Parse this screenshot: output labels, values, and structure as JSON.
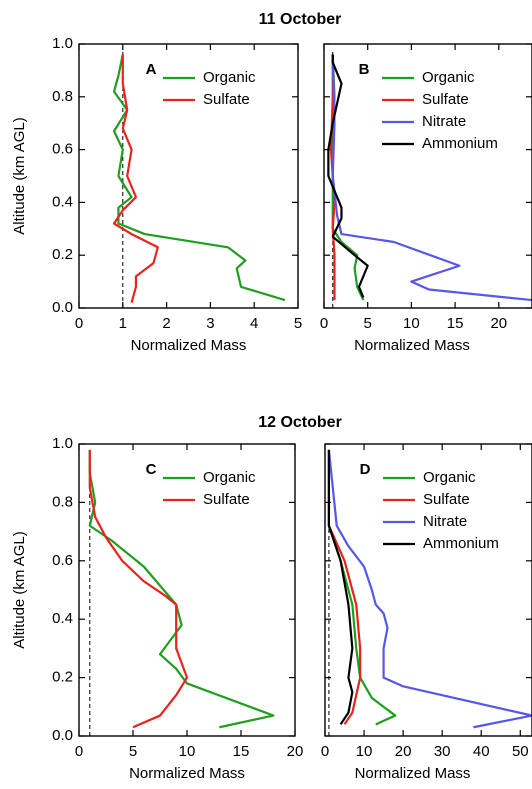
{
  "row_titles": [
    "11 October",
    "12 October"
  ],
  "chart_data": [
    {
      "type": "line",
      "panel_label": "A",
      "xlabel": "Normalized Mass",
      "ylabel": "Altitude (km AGL)",
      "xlim": [
        0,
        5
      ],
      "xticks": [
        0,
        1,
        2,
        3,
        4,
        5
      ],
      "ylim": [
        0,
        1
      ],
      "yticks": [
        {
          "value": 0,
          "label": "0.0"
        },
        {
          "value": 0.2,
          "label": "0.2"
        },
        {
          "value": 0.4,
          "label": "0.4"
        },
        {
          "value": 0.6,
          "label": "0.6"
        },
        {
          "value": 0.8,
          "label": "0.8"
        },
        {
          "value": 1,
          "label": "1.0"
        }
      ],
      "reference_x": 1,
      "series": [
        {
          "name": "Organic",
          "color": "#1f9e1f",
          "x": [
            4.7,
            3.7,
            3.6,
            3.8,
            3.4,
            1.5,
            0.9,
            0.9,
            1.2,
            0.9,
            1.0,
            0.8,
            1.1,
            0.8,
            0.9,
            1.0
          ],
          "y": [
            0.03,
            0.08,
            0.15,
            0.18,
            0.23,
            0.28,
            0.32,
            0.38,
            0.42,
            0.5,
            0.6,
            0.67,
            0.75,
            0.82,
            0.88,
            0.96
          ]
        },
        {
          "name": "Sulfate",
          "color": "#e8231d",
          "x": [
            1.2,
            1.3,
            1.3,
            1.7,
            1.8,
            1.2,
            0.8,
            1.0,
            1.3,
            1.1,
            1.2,
            1.0,
            1.1,
            1.0,
            1.0
          ],
          "y": [
            0.02,
            0.08,
            0.12,
            0.17,
            0.23,
            0.28,
            0.32,
            0.37,
            0.42,
            0.5,
            0.6,
            0.68,
            0.75,
            0.85,
            0.96
          ]
        }
      ]
    },
    {
      "type": "line",
      "panel_label": "B",
      "xlabel": "Normalized Mass",
      "show_ytick_labels": false,
      "xlim": [
        0,
        23.8
      ],
      "xticks": [
        0,
        5,
        10,
        15,
        20
      ],
      "ylim": [
        0,
        1
      ],
      "yticks": [
        0,
        0.2,
        0.4,
        0.6,
        0.8,
        1
      ],
      "reference_x": 1,
      "series": [
        {
          "name": "Organic",
          "color": "#1f9e1f",
          "x": [
            4.5,
            3.8,
            3.5,
            3.8,
            2,
            1,
            1,
            1,
            1.2,
            1
          ],
          "y": [
            0.03,
            0.08,
            0.15,
            0.2,
            0.25,
            0.3,
            0.4,
            0.6,
            0.8,
            0.96
          ]
        },
        {
          "name": "Sulfate",
          "color": "#e8231d",
          "x": [
            1.2,
            1.2,
            1.2,
            1.0,
            1.2,
            0.8,
            1,
            1
          ],
          "y": [
            0.03,
            0.1,
            0.2,
            0.3,
            0.4,
            0.6,
            0.8,
            0.96
          ]
        },
        {
          "name": "Nitrate",
          "color": "#5656e8",
          "x": [
            23.8,
            12,
            10,
            15.5,
            8,
            2,
            1.5,
            1,
            1.2,
            1
          ],
          "y": [
            0.03,
            0.07,
            0.1,
            0.16,
            0.25,
            0.28,
            0.35,
            0.5,
            0.7,
            0.96
          ]
        },
        {
          "name": "Ammonium",
          "color": "#000000",
          "x": [
            4.5,
            4,
            5,
            3.5,
            1,
            2,
            2,
            0.5,
            0.5,
            1,
            2,
            1,
            1
          ],
          "y": [
            0.04,
            0.08,
            0.16,
            0.2,
            0.27,
            0.34,
            0.38,
            0.5,
            0.6,
            0.7,
            0.85,
            0.93,
            0.96
          ]
        }
      ]
    },
    {
      "type": "line",
      "panel_label": "C",
      "xlabel": "Normalized Mass",
      "ylabel": "Altitude (km AGL)",
      "xlim": [
        0,
        20
      ],
      "xticks": [
        0,
        5,
        10,
        15,
        20
      ],
      "ylim": [
        0,
        1
      ],
      "yticks": [
        {
          "value": 0,
          "label": "0.0"
        },
        {
          "value": 0.2,
          "label": "0.2"
        },
        {
          "value": 0.4,
          "label": "0.4"
        },
        {
          "value": 0.6,
          "label": "0.6"
        },
        {
          "value": 0.8,
          "label": "0.8"
        },
        {
          "value": 1,
          "label": "1.0"
        }
      ],
      "reference_x": 1,
      "series": [
        {
          "name": "Organic",
          "color": "#1f9e1f",
          "x": [
            13,
            18,
            10,
            9,
            7.5,
            9.5,
            9,
            6,
            3,
            1,
            1.5,
            1,
            1
          ],
          "y": [
            0.03,
            0.07,
            0.18,
            0.23,
            0.28,
            0.38,
            0.45,
            0.58,
            0.67,
            0.72,
            0.8,
            0.9,
            0.98
          ]
        },
        {
          "name": "Sulfate",
          "color": "#e8231d",
          "x": [
            5,
            7.5,
            9,
            10,
            9,
            9,
            8,
            6,
            4,
            2.5,
            1.5,
            1,
            1
          ],
          "y": [
            0.03,
            0.07,
            0.14,
            0.2,
            0.3,
            0.45,
            0.48,
            0.53,
            0.6,
            0.68,
            0.75,
            0.85,
            0.98
          ]
        }
      ]
    },
    {
      "type": "line",
      "panel_label": "D",
      "xlabel": "Normalized Mass",
      "show_ytick_labels": false,
      "xlim": [
        0,
        53
      ],
      "xticks": [
        0,
        10,
        20,
        30,
        40,
        50
      ],
      "ylim": [
        0,
        1
      ],
      "yticks": [
        0,
        0.2,
        0.4,
        0.6,
        0.8,
        1
      ],
      "reference_x": 1,
      "series": [
        {
          "name": "Organic",
          "color": "#1f9e1f",
          "x": [
            13,
            18,
            12,
            9,
            8,
            7,
            4,
            1,
            1
          ],
          "y": [
            0.04,
            0.07,
            0.13,
            0.2,
            0.3,
            0.45,
            0.6,
            0.72,
            0.98
          ]
        },
        {
          "name": "Sulfate",
          "color": "#e8231d",
          "x": [
            5,
            7,
            9,
            9,
            8,
            5,
            1,
            1
          ],
          "y": [
            0.04,
            0.08,
            0.2,
            0.3,
            0.45,
            0.6,
            0.72,
            0.98
          ]
        },
        {
          "name": "Nitrate",
          "color": "#5656e8",
          "x": [
            38,
            53,
            20,
            15,
            15,
            16,
            15,
            13,
            12,
            10,
            6,
            3,
            1
          ],
          "y": [
            0.03,
            0.07,
            0.17,
            0.2,
            0.3,
            0.37,
            0.42,
            0.45,
            0.5,
            0.58,
            0.65,
            0.72,
            0.98
          ]
        },
        {
          "name": "Ammonium",
          "color": "#000000",
          "x": [
            4,
            6,
            7,
            6,
            7,
            6,
            4,
            1,
            1
          ],
          "y": [
            0.04,
            0.08,
            0.15,
            0.2,
            0.3,
            0.45,
            0.6,
            0.72,
            0.98
          ]
        }
      ]
    }
  ]
}
